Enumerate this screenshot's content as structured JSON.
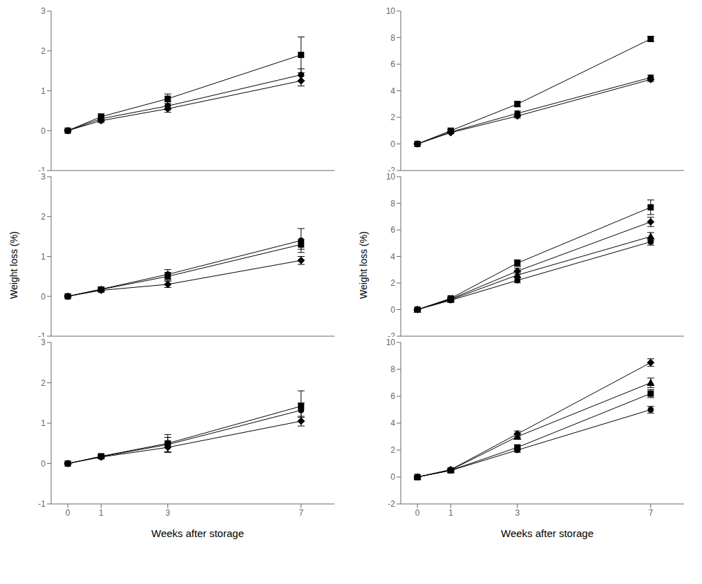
{
  "chart_data": [
    {
      "type": "line",
      "color": "black",
      "grid": false,
      "tick_labels": "y",
      "x": [
        0,
        1,
        3,
        7
      ],
      "xlim": [
        -0.5,
        8.0
      ],
      "xticks": [
        0,
        1,
        3,
        7
      ],
      "ylim": [
        -1,
        3
      ],
      "yticks": [
        -1,
        0,
        1,
        2,
        3
      ],
      "series": [
        {
          "values": [
            0.0,
            0.35,
            0.8,
            1.9
          ],
          "errors": [
            0.02,
            0.07,
            0.12,
            0.45
          ],
          "marker": "square"
        },
        {
          "values": [
            0.0,
            0.3,
            0.62,
            1.4
          ],
          "errors": [
            0.02,
            0.06,
            0.1,
            0.15
          ],
          "marker": "circle"
        },
        {
          "values": [
            0.0,
            0.25,
            0.55,
            1.25
          ],
          "errors": [
            0.02,
            0.05,
            0.09,
            0.13
          ],
          "marker": "diamond"
        }
      ]
    },
    {
      "type": "line",
      "color": "black",
      "grid": false,
      "tick_labels": "y",
      "ylabel": "Weight loss (%)",
      "x": [
        0,
        1,
        3,
        7
      ],
      "xlim": [
        -0.5,
        8.0
      ],
      "xticks": [
        0,
        1,
        3,
        7
      ],
      "ylim": [
        -1,
        3
      ],
      "yticks": [
        -1,
        0,
        1,
        2,
        3
      ],
      "series": [
        {
          "values": [
            0.0,
            0.18,
            0.55,
            1.4
          ],
          "errors": [
            0.02,
            0.05,
            0.12,
            0.3
          ],
          "marker": "circle"
        },
        {
          "values": [
            0.0,
            0.17,
            0.5,
            1.3
          ],
          "errors": [
            0.02,
            0.04,
            0.1,
            0.12
          ],
          "marker": "square"
        },
        {
          "values": [
            0.0,
            0.15,
            0.3,
            0.9
          ],
          "errors": [
            0.02,
            0.04,
            0.08,
            0.1
          ],
          "marker": "diamond"
        }
      ]
    },
    {
      "type": "line",
      "color": "black",
      "grid": false,
      "xlabel": "Weeks after storage",
      "x": [
        0,
        1,
        3,
        7
      ],
      "xlim": [
        -0.5,
        8.0
      ],
      "xticks": [
        0,
        1,
        3,
        7
      ],
      "ylim": [
        -1,
        3
      ],
      "yticks": [
        -1,
        0,
        1,
        2,
        3
      ],
      "series": [
        {
          "values": [
            0.0,
            0.18,
            0.5,
            1.42
          ],
          "errors": [
            0.02,
            0.04,
            0.22,
            0.38
          ],
          "marker": "square"
        },
        {
          "values": [
            0.0,
            0.17,
            0.47,
            1.32
          ],
          "errors": [
            0.02,
            0.04,
            0.18,
            0.18
          ],
          "marker": "circle"
        },
        {
          "values": [
            0.0,
            0.16,
            0.4,
            1.05
          ],
          "errors": [
            0.02,
            0.04,
            0.12,
            0.12
          ],
          "marker": "diamond"
        }
      ]
    },
    {
      "type": "line",
      "color": "black",
      "grid": false,
      "tick_labels": "y",
      "x": [
        0,
        1,
        3,
        7
      ],
      "xlim": [
        -0.5,
        8.0
      ],
      "xticks": [
        0,
        1,
        3,
        7
      ],
      "ylim": [
        -2,
        10
      ],
      "yticks": [
        -2,
        0,
        2,
        4,
        6,
        8,
        10
      ],
      "series": [
        {
          "values": [
            0.0,
            1.0,
            3.0,
            7.9
          ],
          "errors": [
            0.05,
            0.08,
            0.2,
            0.2
          ],
          "marker": "square"
        },
        {
          "values": [
            0.0,
            0.9,
            2.3,
            5.0
          ],
          "errors": [
            0.05,
            0.07,
            0.18,
            0.18
          ],
          "marker": "circle"
        },
        {
          "values": [
            0.0,
            0.85,
            2.1,
            4.85
          ],
          "errors": [
            0.05,
            0.06,
            0.15,
            0.15
          ],
          "marker": "diamond"
        }
      ]
    },
    {
      "type": "line",
      "color": "black",
      "grid": false,
      "tick_labels": "y",
      "ylabel": "Weight loss (%)",
      "x": [
        0,
        1,
        3,
        7
      ],
      "xlim": [
        -0.5,
        8.0
      ],
      "xticks": [
        0,
        1,
        3,
        7
      ],
      "ylim": [
        -2,
        10
      ],
      "yticks": [
        -2,
        0,
        2,
        4,
        6,
        8,
        10
      ],
      "series": [
        {
          "values": [
            0.0,
            0.85,
            3.5,
            7.7
          ],
          "errors": [
            0.05,
            0.1,
            0.25,
            0.55
          ],
          "marker": "square"
        },
        {
          "values": [
            0.0,
            0.8,
            2.9,
            6.6
          ],
          "errors": [
            0.05,
            0.09,
            0.22,
            0.35
          ],
          "marker": "diamond"
        },
        {
          "values": [
            0.0,
            0.75,
            2.6,
            5.5
          ],
          "errors": [
            0.05,
            0.08,
            0.2,
            0.3
          ],
          "marker": "triangle"
        },
        {
          "values": [
            0.0,
            0.7,
            2.2,
            5.1
          ],
          "errors": [
            0.05,
            0.07,
            0.18,
            0.25
          ],
          "marker": "circle"
        }
      ]
    },
    {
      "type": "line",
      "color": "black",
      "grid": false,
      "xlabel": "Weeks after storage",
      "x": [
        0,
        1,
        3,
        7
      ],
      "xlim": [
        -0.5,
        8.0
      ],
      "xticks": [
        0,
        1,
        3,
        7
      ],
      "ylim": [
        -2,
        10
      ],
      "yticks": [
        -2,
        0,
        2,
        4,
        6,
        8,
        10
      ],
      "series": [
        {
          "values": [
            0.0,
            0.55,
            3.2,
            8.5
          ],
          "errors": [
            0.05,
            0.08,
            0.22,
            0.28
          ],
          "marker": "diamond"
        },
        {
          "values": [
            0.0,
            0.52,
            3.0,
            7.0
          ],
          "errors": [
            0.05,
            0.07,
            0.2,
            0.35
          ],
          "marker": "triangle"
        },
        {
          "values": [
            0.0,
            0.5,
            2.2,
            6.2
          ],
          "errors": [
            0.05,
            0.06,
            0.18,
            0.3
          ],
          "marker": "square"
        },
        {
          "values": [
            0.0,
            0.48,
            2.0,
            5.0
          ],
          "errors": [
            0.05,
            0.05,
            0.16,
            0.25
          ],
          "marker": "circle"
        }
      ]
    }
  ]
}
